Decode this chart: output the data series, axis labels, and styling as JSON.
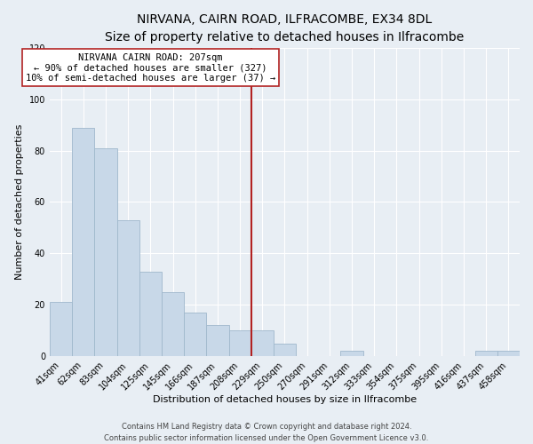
{
  "title": "NIRVANA, CAIRN ROAD, ILFRACOMBE, EX34 8DL",
  "subtitle": "Size of property relative to detached houses in Ilfracombe",
  "xlabel": "Distribution of detached houses by size in Ilfracombe",
  "ylabel": "Number of detached properties",
  "bar_labels": [
    "41sqm",
    "62sqm",
    "83sqm",
    "104sqm",
    "125sqm",
    "145sqm",
    "166sqm",
    "187sqm",
    "208sqm",
    "229sqm",
    "250sqm",
    "270sqm",
    "291sqm",
    "312sqm",
    "333sqm",
    "354sqm",
    "375sqm",
    "395sqm",
    "416sqm",
    "437sqm",
    "458sqm"
  ],
  "bar_values": [
    21,
    89,
    81,
    53,
    33,
    25,
    17,
    12,
    10,
    10,
    5,
    0,
    0,
    2,
    0,
    0,
    0,
    0,
    0,
    2,
    2
  ],
  "bar_color": "#c8d8e8",
  "bar_edge_color": "#a0b8cc",
  "highlight_index": 8,
  "highlight_color": "#b22222",
  "annotation_title": "NIRVANA CAIRN ROAD: 207sqm",
  "annotation_line1": "← 90% of detached houses are smaller (327)",
  "annotation_line2": "10% of semi-detached houses are larger (37) →",
  "annotation_box_color": "#ffffff",
  "annotation_box_edge": "#b22222",
  "ylim": [
    0,
    120
  ],
  "yticks": [
    0,
    20,
    40,
    60,
    80,
    100,
    120
  ],
  "background_color": "#e8eef4",
  "grid_color": "#ffffff",
  "footer1": "Contains HM Land Registry data © Crown copyright and database right 2024.",
  "footer2": "Contains public sector information licensed under the Open Government Licence v3.0.",
  "title_fontsize": 10,
  "subtitle_fontsize": 9,
  "label_fontsize": 8,
  "tick_fontsize": 7,
  "annotation_fontsize": 7.5,
  "footer_fontsize": 6
}
